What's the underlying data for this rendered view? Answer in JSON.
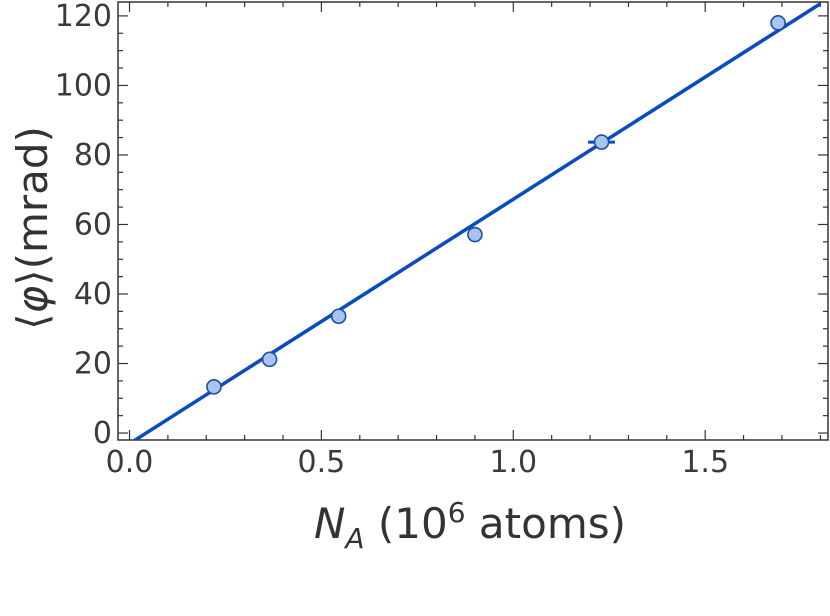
{
  "chart_data": {
    "type": "scatter",
    "xlabel": {
      "symbol": "N",
      "subscript": "A",
      "unit_prefix": " (10",
      "unit_power": "6",
      "unit_suffix": " atoms)"
    },
    "ylabel": {
      "left_bracket": "⟨",
      "symbol": "φ",
      "right_bracket": "⟩",
      "unit": "(mrad)"
    },
    "xlim": [
      -0.03,
      1.82
    ],
    "ylim": [
      -2,
      124
    ],
    "x_ticks": [
      0.0,
      0.5,
      1.0,
      1.5
    ],
    "x_tick_labels": [
      "0.0",
      "0.5",
      "1.0",
      "1.5"
    ],
    "y_ticks": [
      0,
      20,
      40,
      60,
      80,
      100,
      120
    ],
    "y_tick_labels": [
      "0",
      "20",
      "40",
      "60",
      "80",
      "100",
      "120"
    ],
    "grid": false,
    "series": [
      {
        "type": "scatter",
        "x": [
          0.22,
          0.365,
          0.545,
          0.9,
          1.23,
          1.69
        ],
        "y": [
          13.3,
          21.2,
          33.6,
          57.1,
          83.7,
          118.0
        ],
        "x_err": [
          0.008,
          0.008,
          0.01,
          0.015,
          0.035,
          0.02
        ],
        "y_err": [
          1.0,
          1.0,
          1.0,
          1.2,
          1.2,
          1.2
        ]
      },
      {
        "type": "line",
        "x": [
          0.0,
          1.8
        ],
        "y": [
          -3.05,
          123.5
        ]
      }
    ],
    "colors": {
      "marker_fill": "#a9c4ee",
      "marker_stroke": "#1a4fa3",
      "line": "#0a4bbf",
      "axis": "#333333"
    }
  }
}
